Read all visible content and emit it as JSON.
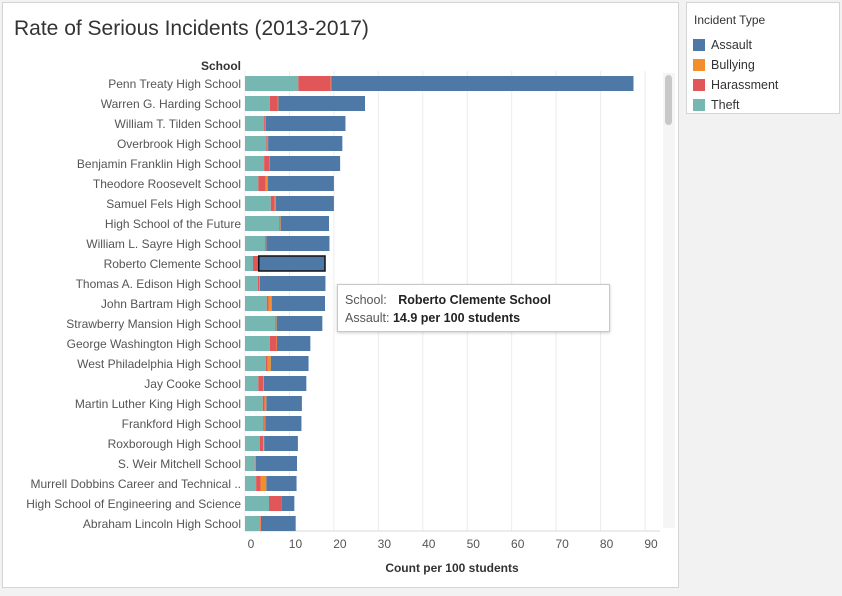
{
  "title": "Rate of Serious Incidents (2013-2017)",
  "legend": {
    "title": "Incident Type",
    "items": [
      {
        "label": "Assault",
        "color": "#4e79a7"
      },
      {
        "label": "Bullying",
        "color": "#f28e2b"
      },
      {
        "label": "Harassment",
        "color": "#e15759"
      },
      {
        "label": "Theft",
        "color": "#76b7b2"
      }
    ]
  },
  "tooltip": {
    "school_label": "School:",
    "school_value": "Roberto Clemente School",
    "metric_label": "Assault:",
    "metric_value": "14.9 per 100 students"
  },
  "chart_data": {
    "type": "bar",
    "orientation": "horizontal",
    "stacked": true,
    "row_header": "School",
    "xlabel": "Count per 100 students",
    "xlim": [
      0,
      90
    ],
    "xticks": [
      0,
      10,
      20,
      30,
      40,
      50,
      60,
      70,
      80,
      90
    ],
    "grid": true,
    "legend_position": "right",
    "categories": [
      "Penn Treaty High School",
      "Warren G. Harding School",
      "William T. Tilden School",
      "Overbrook High School",
      "Benjamin Franklin High School",
      "Theodore Roosevelt School",
      "Samuel Fels High School",
      "High School of the Future",
      "William L. Sayre High School",
      "Roberto Clemente School",
      "Thomas A. Edison High School",
      "John Bartram High School",
      "Strawberry Mansion High School",
      "George Washington High School",
      "West Philadelphia High School",
      "Jay Cooke School",
      "Martin Luther King High School",
      "Frankford High School",
      "Roxborough High School",
      "S. Weir Mitchell School",
      "Murrell Dobbins Career and Technical ..",
      "High School of Engineering and Science",
      "Abraham Lincoln High School"
    ],
    "series": [
      {
        "name": "Theft",
        "color": "#76b7b2",
        "values": [
          12.0,
          5.6,
          4.3,
          4.8,
          4.3,
          3.0,
          5.8,
          7.7,
          4.5,
          1.8,
          2.9,
          4.9,
          6.8,
          5.6,
          4.7,
          3.0,
          4.0,
          4.1,
          3.3,
          2.2,
          2.5,
          5.4,
          3.4
        ]
      },
      {
        "name": "Harassment",
        "color": "#e15759",
        "values": [
          7.3,
          1.8,
          0.3,
          0.3,
          1.2,
          1.6,
          0.9,
          0.2,
          0.2,
          1.2,
          0.3,
          0.4,
          0.2,
          1.5,
          0.4,
          1.1,
          0.4,
          0.3,
          0.8,
          0.1,
          1.0,
          2.7,
          0.1
        ]
      },
      {
        "name": "Bullying",
        "color": "#f28e2b",
        "values": [
          0.1,
          0.1,
          0.1,
          0.1,
          0.1,
          0.5,
          0.2,
          0.1,
          0.1,
          0.1,
          0.1,
          0.7,
          0.1,
          0.1,
          0.7,
          0.1,
          0.4,
          0.2,
          0.2,
          0.1,
          1.3,
          0.1,
          0.1
        ]
      },
      {
        "name": "Assault",
        "color": "#4e79a7",
        "values": [
          68.0,
          19.5,
          17.9,
          16.7,
          15.8,
          14.9,
          13.1,
          10.9,
          14.2,
          14.9,
          14.8,
          12.0,
          10.3,
          7.5,
          8.5,
          9.6,
          8.0,
          8.1,
          7.6,
          9.3,
          6.8,
          2.9,
          7.8
        ]
      }
    ],
    "highlighted": {
      "category": "Roberto Clemente School",
      "series": "Assault"
    }
  }
}
